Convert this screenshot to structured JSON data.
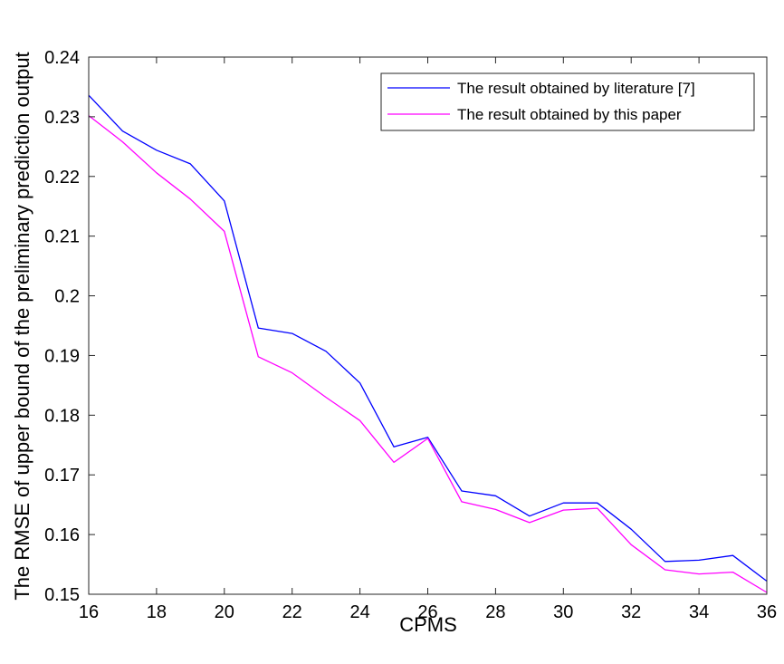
{
  "chart_data": {
    "type": "line",
    "xlabel": "CPMS",
    "ylabel": "The RMSE of upper bound of the preliminary prediction output",
    "xlim": [
      16,
      36
    ],
    "ylim": [
      0.15,
      0.24
    ],
    "xticks": [
      "16",
      "18",
      "20",
      "22",
      "24",
      "26",
      "28",
      "30",
      "32",
      "34",
      "36"
    ],
    "yticks": [
      "0.15",
      "0.16",
      "0.17",
      "0.18",
      "0.19",
      "0.2",
      "0.21",
      "0.22",
      "0.23",
      "0.24"
    ],
    "grid": false,
    "legend_position": "top-right",
    "x": [
      16,
      17,
      18,
      19,
      20,
      21,
      22,
      23,
      24,
      25,
      26,
      27,
      28,
      29,
      30,
      31,
      32,
      33,
      34,
      35,
      36
    ],
    "series": [
      {
        "name": "The result obtained by literature [7]",
        "color": "#0000ff",
        "values": [
          0.2336,
          0.2276,
          0.2244,
          0.2221,
          0.2159,
          0.1946,
          0.1937,
          0.1907,
          0.1854,
          0.1747,
          0.1763,
          0.1673,
          0.1665,
          0.1631,
          0.1653,
          0.1653,
          0.1609,
          0.1555,
          0.1557,
          0.1565,
          0.1522
        ]
      },
      {
        "name": "The result obtained by this paper",
        "color": "#ff00ff",
        "values": [
          0.2302,
          0.2258,
          0.2206,
          0.2162,
          0.2108,
          0.1898,
          0.1871,
          0.183,
          0.1791,
          0.1721,
          0.1761,
          0.1655,
          0.1642,
          0.162,
          0.1641,
          0.1644,
          0.1583,
          0.1541,
          0.1534,
          0.1537,
          0.1503
        ]
      }
    ]
  }
}
